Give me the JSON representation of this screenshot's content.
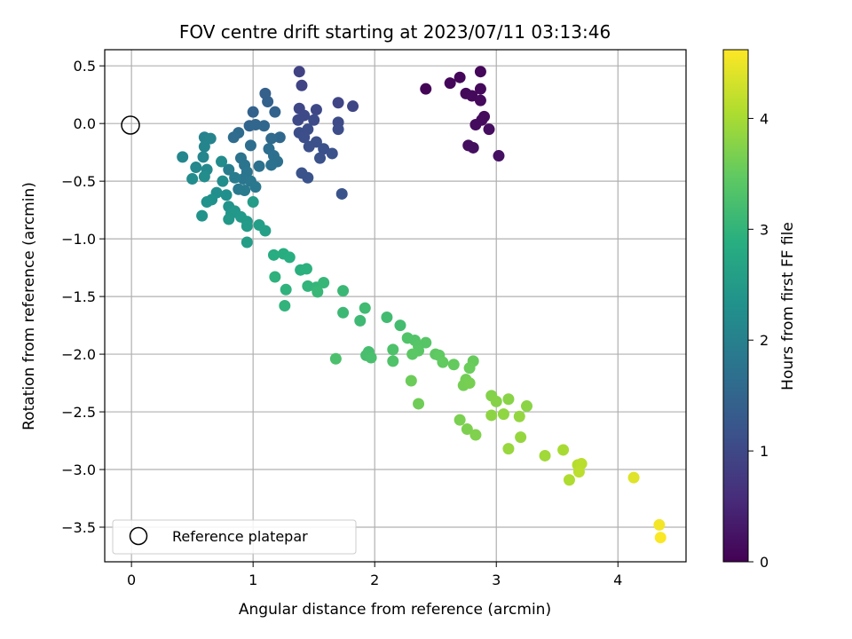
{
  "chart_data": {
    "type": "scatter",
    "title": "FOV centre drift starting at 2023/07/11 03:13:46",
    "xlabel": "Angular distance from reference (arcmin)",
    "ylabel": "Rotation from reference (arcmin)",
    "xlim": [
      -0.22,
      4.56
    ],
    "ylim": [
      -3.8,
      0.64
    ],
    "xticks": [
      0,
      1,
      2,
      3,
      4
    ],
    "yticks": [
      0.5,
      0.0,
      -0.5,
      -1.0,
      -1.5,
      -2.0,
      -2.5,
      -3.0,
      -3.5
    ],
    "ytick_labels": [
      "0.5",
      "0.0",
      "−0.5",
      "−1.0",
      "−1.5",
      "−2.0",
      "−2.5",
      "−3.0",
      "−3.5"
    ],
    "grid": true,
    "colormap": "viridis",
    "colorbar": {
      "label": "Hours from first FF file",
      "range": [
        0,
        4.62
      ],
      "ticks": [
        0,
        1,
        2,
        3,
        4
      ]
    },
    "legend": {
      "position": "lower-left",
      "entries": [
        "Reference platepar"
      ]
    },
    "reference_point": {
      "x": 0.0,
      "y": 0.0
    },
    "points": [
      {
        "x": 2.42,
        "y": 0.3,
        "t": 0.05
      },
      {
        "x": 2.62,
        "y": 0.35,
        "t": 0.06
      },
      {
        "x": 2.7,
        "y": 0.4,
        "t": 0.07
      },
      {
        "x": 2.87,
        "y": 0.45,
        "t": 0.08
      },
      {
        "x": 2.75,
        "y": 0.26,
        "t": 0.09
      },
      {
        "x": 2.8,
        "y": 0.24,
        "t": 0.1
      },
      {
        "x": 2.87,
        "y": 0.3,
        "t": 0.11
      },
      {
        "x": 2.87,
        "y": 0.2,
        "t": 0.12
      },
      {
        "x": 2.9,
        "y": 0.06,
        "t": 0.13
      },
      {
        "x": 2.88,
        "y": 0.03,
        "t": 0.14
      },
      {
        "x": 2.83,
        "y": -0.01,
        "t": 0.15
      },
      {
        "x": 2.94,
        "y": -0.05,
        "t": 0.16
      },
      {
        "x": 2.77,
        "y": -0.19,
        "t": 0.17
      },
      {
        "x": 2.81,
        "y": -0.21,
        "t": 0.18
      },
      {
        "x": 3.02,
        "y": -0.28,
        "t": 0.2
      },
      {
        "x": 1.38,
        "y": 0.45,
        "t": 0.9
      },
      {
        "x": 1.4,
        "y": 0.33,
        "t": 0.92
      },
      {
        "x": 1.7,
        "y": 0.18,
        "t": 0.95
      },
      {
        "x": 1.82,
        "y": 0.15,
        "t": 0.97
      },
      {
        "x": 1.38,
        "y": 0.13,
        "t": 0.98
      },
      {
        "x": 1.52,
        "y": 0.12,
        "t": 1.0
      },
      {
        "x": 1.37,
        "y": 0.03,
        "t": 1.02
      },
      {
        "x": 1.42,
        "y": 0.07,
        "t": 1.03
      },
      {
        "x": 1.5,
        "y": 0.03,
        "t": 1.05
      },
      {
        "x": 1.7,
        "y": 0.01,
        "t": 1.06
      },
      {
        "x": 1.7,
        "y": -0.05,
        "t": 1.08
      },
      {
        "x": 1.45,
        "y": -0.05,
        "t": 1.09
      },
      {
        "x": 1.38,
        "y": -0.08,
        "t": 1.1
      },
      {
        "x": 1.42,
        "y": -0.12,
        "t": 1.11
      },
      {
        "x": 1.52,
        "y": -0.16,
        "t": 1.12
      },
      {
        "x": 1.46,
        "y": -0.2,
        "t": 1.13
      },
      {
        "x": 1.58,
        "y": -0.22,
        "t": 1.14
      },
      {
        "x": 1.65,
        "y": -0.26,
        "t": 1.15
      },
      {
        "x": 1.55,
        "y": -0.3,
        "t": 1.16
      },
      {
        "x": 1.4,
        "y": -0.43,
        "t": 1.17
      },
      {
        "x": 1.45,
        "y": -0.47,
        "t": 1.18
      },
      {
        "x": 1.73,
        "y": -0.61,
        "t": 1.2
      },
      {
        "x": 1.1,
        "y": 0.26,
        "t": 1.4
      },
      {
        "x": 1.12,
        "y": 0.19,
        "t": 1.42
      },
      {
        "x": 1.0,
        "y": 0.1,
        "t": 1.45
      },
      {
        "x": 1.18,
        "y": 0.1,
        "t": 1.47
      },
      {
        "x": 0.97,
        "y": -0.02,
        "t": 1.5
      },
      {
        "x": 1.02,
        "y": -0.01,
        "t": 1.52
      },
      {
        "x": 1.09,
        "y": -0.02,
        "t": 1.54
      },
      {
        "x": 1.22,
        "y": -0.12,
        "t": 1.56
      },
      {
        "x": 1.15,
        "y": -0.13,
        "t": 1.58
      },
      {
        "x": 0.88,
        "y": -0.08,
        "t": 1.6
      },
      {
        "x": 0.84,
        "y": -0.12,
        "t": 1.62
      },
      {
        "x": 0.98,
        "y": -0.19,
        "t": 1.64
      },
      {
        "x": 1.13,
        "y": -0.22,
        "t": 1.66
      },
      {
        "x": 1.17,
        "y": -0.28,
        "t": 1.68
      },
      {
        "x": 1.2,
        "y": -0.33,
        "t": 1.7
      },
      {
        "x": 1.05,
        "y": -0.37,
        "t": 1.72
      },
      {
        "x": 1.15,
        "y": -0.36,
        "t": 1.74
      },
      {
        "x": 0.9,
        "y": -0.3,
        "t": 1.75
      },
      {
        "x": 0.93,
        "y": -0.36,
        "t": 1.77
      },
      {
        "x": 0.95,
        "y": -0.42,
        "t": 1.79
      },
      {
        "x": 0.92,
        "y": -0.48,
        "t": 1.81
      },
      {
        "x": 0.98,
        "y": -0.5,
        "t": 1.83
      },
      {
        "x": 1.02,
        "y": -0.55,
        "t": 1.85
      },
      {
        "x": 0.88,
        "y": -0.57,
        "t": 1.87
      },
      {
        "x": 0.93,
        "y": -0.58,
        "t": 1.89
      },
      {
        "x": 0.85,
        "y": -0.47,
        "t": 1.91
      },
      {
        "x": 0.8,
        "y": -0.4,
        "t": 1.93
      },
      {
        "x": 0.6,
        "y": -0.12,
        "t": 2.05
      },
      {
        "x": 0.65,
        "y": -0.13,
        "t": 2.07
      },
      {
        "x": 0.6,
        "y": -0.2,
        "t": 2.09
      },
      {
        "x": 0.59,
        "y": -0.29,
        "t": 2.11
      },
      {
        "x": 0.42,
        "y": -0.29,
        "t": 2.13
      },
      {
        "x": 0.53,
        "y": -0.38,
        "t": 2.15
      },
      {
        "x": 0.62,
        "y": -0.4,
        "t": 2.17
      },
      {
        "x": 0.74,
        "y": -0.33,
        "t": 2.19
      },
      {
        "x": 0.5,
        "y": -0.48,
        "t": 2.21
      },
      {
        "x": 0.6,
        "y": -0.46,
        "t": 2.23
      },
      {
        "x": 0.75,
        "y": -0.5,
        "t": 2.25
      },
      {
        "x": 0.7,
        "y": -0.6,
        "t": 2.27
      },
      {
        "x": 0.78,
        "y": -0.62,
        "t": 2.29
      },
      {
        "x": 0.66,
        "y": -0.66,
        "t": 2.31
      },
      {
        "x": 0.62,
        "y": -0.68,
        "t": 2.33
      },
      {
        "x": 0.58,
        "y": -0.8,
        "t": 2.35
      },
      {
        "x": 0.8,
        "y": -0.72,
        "t": 2.37
      },
      {
        "x": 0.82,
        "y": -0.78,
        "t": 2.4
      },
      {
        "x": 0.85,
        "y": -0.76,
        "t": 2.42
      },
      {
        "x": 0.8,
        "y": -0.83,
        "t": 2.44
      },
      {
        "x": 0.9,
        "y": -0.81,
        "t": 2.46
      },
      {
        "x": 0.95,
        "y": -0.85,
        "t": 2.48
      },
      {
        "x": 0.95,
        "y": -0.89,
        "t": 2.5
      },
      {
        "x": 1.0,
        "y": -0.68,
        "t": 2.52
      },
      {
        "x": 0.95,
        "y": -1.03,
        "t": 2.54
      },
      {
        "x": 1.05,
        "y": -0.88,
        "t": 2.56
      },
      {
        "x": 1.1,
        "y": -0.93,
        "t": 2.6
      },
      {
        "x": 1.17,
        "y": -1.14,
        "t": 2.85
      },
      {
        "x": 1.25,
        "y": -1.13,
        "t": 2.87
      },
      {
        "x": 1.3,
        "y": -1.16,
        "t": 2.89
      },
      {
        "x": 1.39,
        "y": -1.27,
        "t": 2.91
      },
      {
        "x": 1.44,
        "y": -1.26,
        "t": 2.93
      },
      {
        "x": 1.18,
        "y": -1.33,
        "t": 2.95
      },
      {
        "x": 1.27,
        "y": -1.44,
        "t": 2.97
      },
      {
        "x": 1.26,
        "y": -1.58,
        "t": 2.99
      },
      {
        "x": 1.45,
        "y": -1.41,
        "t": 3.01
      },
      {
        "x": 1.52,
        "y": -1.42,
        "t": 3.03
      },
      {
        "x": 1.58,
        "y": -1.38,
        "t": 3.05
      },
      {
        "x": 1.53,
        "y": -1.46,
        "t": 3.07
      },
      {
        "x": 1.74,
        "y": -1.45,
        "t": 3.09
      },
      {
        "x": 1.74,
        "y": -1.64,
        "t": 3.11
      },
      {
        "x": 1.88,
        "y": -1.71,
        "t": 3.13
      },
      {
        "x": 1.92,
        "y": -1.6,
        "t": 3.15
      },
      {
        "x": 2.1,
        "y": -1.68,
        "t": 3.17
      },
      {
        "x": 2.21,
        "y": -1.75,
        "t": 3.19
      },
      {
        "x": 1.95,
        "y": -1.98,
        "t": 3.21
      },
      {
        "x": 1.93,
        "y": -2.01,
        "t": 3.23
      },
      {
        "x": 1.97,
        "y": -2.03,
        "t": 3.25
      },
      {
        "x": 1.68,
        "y": -2.04,
        "t": 3.27
      },
      {
        "x": 2.15,
        "y": -1.96,
        "t": 3.29
      },
      {
        "x": 2.15,
        "y": -2.06,
        "t": 3.31
      },
      {
        "x": 2.27,
        "y": -1.86,
        "t": 3.33
      },
      {
        "x": 2.33,
        "y": -1.88,
        "t": 3.35
      },
      {
        "x": 2.36,
        "y": -1.93,
        "t": 3.37
      },
      {
        "x": 2.42,
        "y": -1.9,
        "t": 3.39
      },
      {
        "x": 2.36,
        "y": -1.97,
        "t": 3.41
      },
      {
        "x": 2.31,
        "y": -2.0,
        "t": 3.43
      },
      {
        "x": 2.5,
        "y": -2.0,
        "t": 3.45
      },
      {
        "x": 2.53,
        "y": -2.01,
        "t": 3.47
      },
      {
        "x": 2.56,
        "y": -2.07,
        "t": 3.49
      },
      {
        "x": 2.65,
        "y": -2.09,
        "t": 3.51
      },
      {
        "x": 2.81,
        "y": -2.06,
        "t": 3.53
      },
      {
        "x": 2.78,
        "y": -2.12,
        "t": 3.55
      },
      {
        "x": 2.3,
        "y": -2.23,
        "t": 3.57
      },
      {
        "x": 2.36,
        "y": -2.43,
        "t": 3.59
      },
      {
        "x": 2.75,
        "y": -2.22,
        "t": 3.61
      },
      {
        "x": 2.73,
        "y": -2.27,
        "t": 3.63
      },
      {
        "x": 2.78,
        "y": -2.25,
        "t": 3.65
      },
      {
        "x": 2.7,
        "y": -2.57,
        "t": 3.67
      },
      {
        "x": 2.76,
        "y": -2.65,
        "t": 3.69
      },
      {
        "x": 2.83,
        "y": -2.7,
        "t": 3.71
      },
      {
        "x": 2.96,
        "y": -2.36,
        "t": 3.73
      },
      {
        "x": 3.0,
        "y": -2.41,
        "t": 3.75
      },
      {
        "x": 3.1,
        "y": -2.39,
        "t": 3.77
      },
      {
        "x": 3.25,
        "y": -2.45,
        "t": 3.79
      },
      {
        "x": 2.96,
        "y": -2.53,
        "t": 3.81
      },
      {
        "x": 3.06,
        "y": -2.52,
        "t": 3.83
      },
      {
        "x": 3.19,
        "y": -2.54,
        "t": 3.85
      },
      {
        "x": 3.2,
        "y": -2.72,
        "t": 3.87
      },
      {
        "x": 3.1,
        "y": -2.82,
        "t": 3.89
      },
      {
        "x": 3.4,
        "y": -2.88,
        "t": 3.95
      },
      {
        "x": 3.55,
        "y": -2.83,
        "t": 4.0
      },
      {
        "x": 3.6,
        "y": -3.09,
        "t": 4.05
      },
      {
        "x": 3.67,
        "y": -2.96,
        "t": 4.1
      },
      {
        "x": 3.7,
        "y": -2.95,
        "t": 4.13
      },
      {
        "x": 3.68,
        "y": -3.02,
        "t": 4.15
      },
      {
        "x": 4.13,
        "y": -3.07,
        "t": 4.4
      },
      {
        "x": 4.34,
        "y": -3.48,
        "t": 4.55
      },
      {
        "x": 4.35,
        "y": -3.59,
        "t": 4.6
      }
    ]
  }
}
